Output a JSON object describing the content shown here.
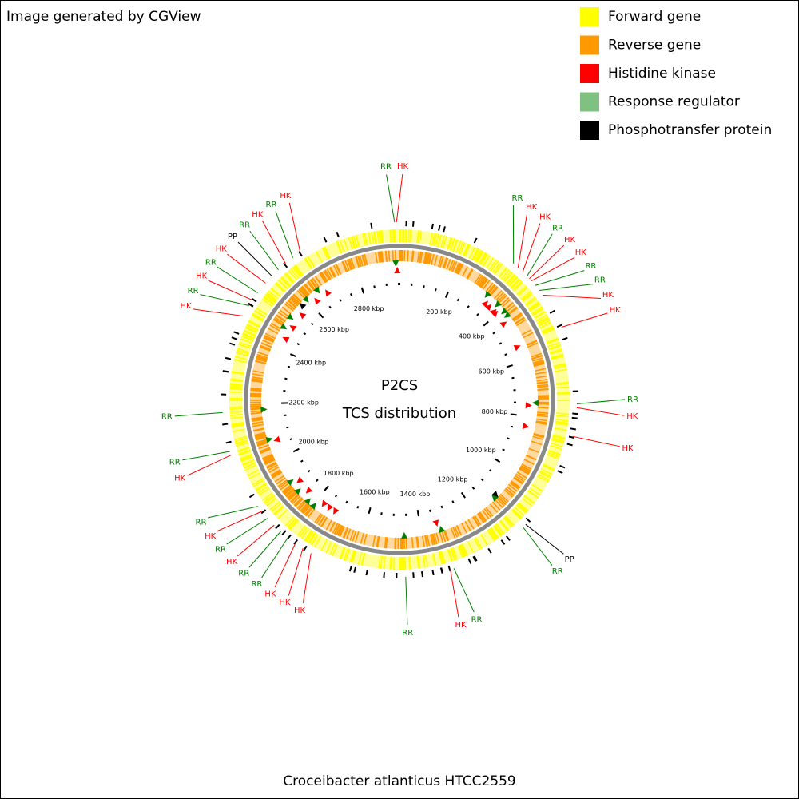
{
  "header": {
    "title": "Image generated by CGView"
  },
  "legend": [
    {
      "label": "Forward gene",
      "color": "#ffff00"
    },
    {
      "label": "Reverse gene",
      "color": "#ff9900"
    },
    {
      "label": "Histidine kinase",
      "color": "#ff0000"
    },
    {
      "label": "Response regulator",
      "color": "#80c080"
    },
    {
      "label": "Phosphotransfer protein",
      "color": "#000000"
    }
  ],
  "center": {
    "line1": "P2CS",
    "line2": "TCS distribution"
  },
  "footer": {
    "organism": "Croceibacter atlanticus HTCC2559"
  },
  "scale": {
    "range_kbp": [
      0,
      2953
    ],
    "ticks": [
      {
        "value": 200,
        "label": "200 kbp"
      },
      {
        "value": 400,
        "label": "400 kbp"
      },
      {
        "value": 600,
        "label": "600 kbp"
      },
      {
        "value": 800,
        "label": "800 kbp"
      },
      {
        "value": 1000,
        "label": "1000 kbp"
      },
      {
        "value": 1200,
        "label": "1200 kbp"
      },
      {
        "value": 1400,
        "label": "1400 kbp"
      },
      {
        "value": 1600,
        "label": "1600 kbp"
      },
      {
        "value": 1800,
        "label": "1800 kbp"
      },
      {
        "value": 2000,
        "label": "2000 kbp"
      },
      {
        "value": 2200,
        "label": "2200 kbp"
      },
      {
        "value": 2400,
        "label": "2400 kbp"
      },
      {
        "value": 2600,
        "label": "2600 kbp"
      },
      {
        "value": 2800,
        "label": "2800 kbp"
      }
    ]
  },
  "features": [
    {
      "label": "RR",
      "position": 328
    },
    {
      "label": "HK",
      "position": 344
    },
    {
      "label": "HK",
      "position": 361
    },
    {
      "label": "RR",
      "position": 377
    },
    {
      "label": "HK",
      "position": 386
    },
    {
      "label": "HK",
      "position": 394
    },
    {
      "label": "RR",
      "position": 410
    },
    {
      "label": "RR",
      "position": 427
    },
    {
      "label": "HK",
      "position": 443
    },
    {
      "label": "HK",
      "position": 541
    },
    {
      "label": "RR",
      "position": 750
    },
    {
      "label": "HK",
      "position": 760
    },
    {
      "label": "HK",
      "position": 837
    },
    {
      "label": "PP",
      "position": 1105
    },
    {
      "label": "RR",
      "position": 1115
    },
    {
      "label": "RR",
      "position": 1330
    },
    {
      "label": "HK",
      "position": 1340
    },
    {
      "label": "RR",
      "position": 1460
    },
    {
      "label": "HK",
      "position": 1722
    },
    {
      "label": "HK",
      "position": 1747
    },
    {
      "label": "HK",
      "position": 1771
    },
    {
      "label": "RR",
      "position": 1796
    },
    {
      "label": "RR",
      "position": 1821
    },
    {
      "label": "HK",
      "position": 1845
    },
    {
      "label": "RR",
      "position": 1870
    },
    {
      "label": "HK",
      "position": 1894
    },
    {
      "label": "RR",
      "position": 1911
    },
    {
      "label": "HK",
      "position": 2065
    },
    {
      "label": "RR",
      "position": 2075
    },
    {
      "label": "RR",
      "position": 2180
    },
    {
      "label": "HK",
      "position": 2445
    },
    {
      "label": "RR",
      "position": 2477
    },
    {
      "label": "HK",
      "position": 2494
    },
    {
      "label": "RR",
      "position": 2518
    },
    {
      "label": "HK",
      "position": 2551
    },
    {
      "label": "PP",
      "position": 2576
    },
    {
      "label": "RR",
      "position": 2600
    },
    {
      "label": "HK",
      "position": 2625
    },
    {
      "label": "RR",
      "position": 2650
    },
    {
      "label": "HK",
      "position": 2674
    },
    {
      "label": "RR",
      "position": 2940
    },
    {
      "label": "HK",
      "position": 2945
    }
  ]
}
